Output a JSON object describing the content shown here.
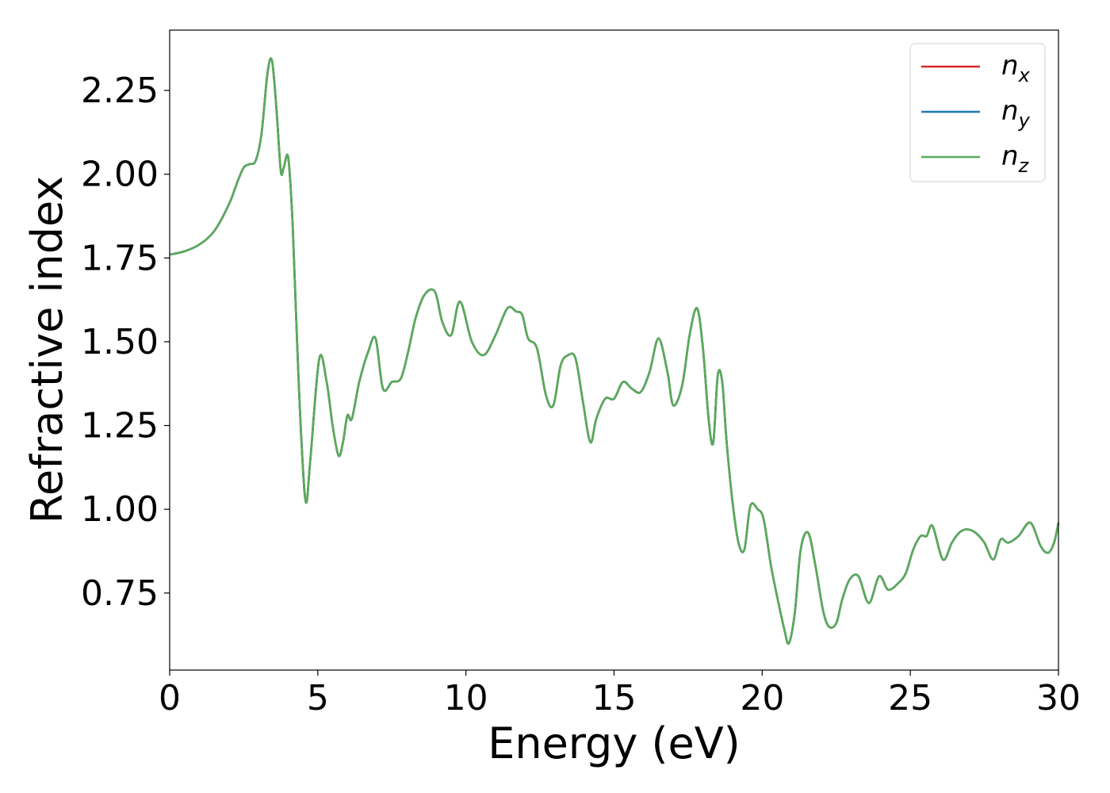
{
  "chart_data": {
    "type": "line",
    "title": "",
    "xlabel": "Energy (eV)",
    "ylabel": "Refractive index",
    "xlim": [
      0,
      30
    ],
    "ylim": [
      0.52,
      2.43
    ],
    "xticks": [
      0,
      5,
      10,
      15,
      20,
      25,
      30
    ],
    "xtick_labels": [
      "0",
      "5",
      "10",
      "15",
      "20",
      "25",
      "30"
    ],
    "yticks": [
      0.75,
      1.0,
      1.25,
      1.5,
      1.75,
      2.0,
      2.25
    ],
    "ytick_labels": [
      "0.75",
      "1.00",
      "1.25",
      "1.50",
      "1.75",
      "2.00",
      "2.25"
    ],
    "grid": false,
    "legend_position": "top-right",
    "series": [
      {
        "name": "n",
        "sub": "x",
        "color": "#d62728",
        "x": [
          0,
          0.5,
          1,
          1.5,
          2,
          2.3,
          2.5,
          2.7,
          2.9,
          3.1,
          3.3,
          3.45,
          3.6,
          3.75,
          3.85,
          4.0,
          4.15,
          4.3,
          4.45,
          4.6,
          4.75,
          5.05,
          5.3,
          5.5,
          5.7,
          5.85,
          6.0,
          6.15,
          6.4,
          6.7,
          6.95,
          7.2,
          7.5,
          7.8,
          8.05,
          8.3,
          8.6,
          8.95,
          9.2,
          9.5,
          9.8,
          10.2,
          10.6,
          11.0,
          11.4,
          11.7,
          11.9,
          12.1,
          12.4,
          12.7,
          12.95,
          13.2,
          13.45,
          13.7,
          13.95,
          14.2,
          14.4,
          14.7,
          15.0,
          15.3,
          15.6,
          15.9,
          16.2,
          16.5,
          16.8,
          17.0,
          17.3,
          17.55,
          17.8,
          18.0,
          18.2,
          18.35,
          18.5,
          18.65,
          18.8,
          19.0,
          19.2,
          19.4,
          19.6,
          19.85,
          20.05,
          20.3,
          20.55,
          20.75,
          20.9,
          21.1,
          21.3,
          21.55,
          21.8,
          22.05,
          22.25,
          22.5,
          22.7,
          22.95,
          23.25,
          23.6,
          23.95,
          24.25,
          24.6,
          24.85,
          25.1,
          25.35,
          25.55,
          25.75,
          26.1,
          26.4,
          26.65,
          26.9,
          27.2,
          27.5,
          27.8,
          28.05,
          28.3,
          28.65,
          29.05,
          29.4,
          29.65,
          29.85,
          30.0
        ],
        "y": [
          1.76,
          1.77,
          1.79,
          1.83,
          1.91,
          1.98,
          2.02,
          2.03,
          2.04,
          2.12,
          2.3,
          2.34,
          2.2,
          2.01,
          2.02,
          2.05,
          1.85,
          1.5,
          1.2,
          1.02,
          1.15,
          1.45,
          1.38,
          1.25,
          1.16,
          1.2,
          1.28,
          1.27,
          1.38,
          1.47,
          1.51,
          1.36,
          1.38,
          1.39,
          1.47,
          1.57,
          1.64,
          1.65,
          1.56,
          1.52,
          1.62,
          1.5,
          1.46,
          1.52,
          1.6,
          1.59,
          1.58,
          1.51,
          1.48,
          1.34,
          1.31,
          1.43,
          1.46,
          1.45,
          1.32,
          1.2,
          1.27,
          1.33,
          1.33,
          1.38,
          1.36,
          1.35,
          1.41,
          1.51,
          1.41,
          1.31,
          1.37,
          1.52,
          1.6,
          1.48,
          1.26,
          1.2,
          1.4,
          1.38,
          1.2,
          1.02,
          0.9,
          0.88,
          1.01,
          1.0,
          0.97,
          0.83,
          0.72,
          0.64,
          0.6,
          0.69,
          0.88,
          0.93,
          0.83,
          0.7,
          0.65,
          0.66,
          0.73,
          0.79,
          0.8,
          0.72,
          0.8,
          0.76,
          0.78,
          0.81,
          0.88,
          0.92,
          0.92,
          0.95,
          0.85,
          0.9,
          0.93,
          0.94,
          0.93,
          0.9,
          0.85,
          0.91,
          0.9,
          0.92,
          0.96,
          0.89,
          0.87,
          0.9,
          0.96
        ]
      },
      {
        "name": "n",
        "sub": "y",
        "color": "#1f77b4",
        "x": [
          0,
          0.5,
          1,
          1.5,
          2,
          2.3,
          2.5,
          2.7,
          2.9,
          3.1,
          3.3,
          3.45,
          3.6,
          3.75,
          3.85,
          4.0,
          4.15,
          4.3,
          4.45,
          4.6,
          4.75,
          5.05,
          5.3,
          5.5,
          5.7,
          5.85,
          6.0,
          6.15,
          6.4,
          6.7,
          6.95,
          7.2,
          7.5,
          7.8,
          8.05,
          8.3,
          8.6,
          8.95,
          9.2,
          9.5,
          9.8,
          10.2,
          10.6,
          11.0,
          11.4,
          11.7,
          11.9,
          12.1,
          12.4,
          12.7,
          12.95,
          13.2,
          13.45,
          13.7,
          13.95,
          14.2,
          14.4,
          14.7,
          15.0,
          15.3,
          15.6,
          15.9,
          16.2,
          16.5,
          16.8,
          17.0,
          17.3,
          17.55,
          17.8,
          18.0,
          18.2,
          18.35,
          18.5,
          18.65,
          18.8,
          19.0,
          19.2,
          19.4,
          19.6,
          19.85,
          20.05,
          20.3,
          20.55,
          20.75,
          20.9,
          21.1,
          21.3,
          21.55,
          21.8,
          22.05,
          22.25,
          22.5,
          22.7,
          22.95,
          23.25,
          23.6,
          23.95,
          24.25,
          24.6,
          24.85,
          25.1,
          25.35,
          25.55,
          25.75,
          26.1,
          26.4,
          26.65,
          26.9,
          27.2,
          27.5,
          27.8,
          28.05,
          28.3,
          28.65,
          29.05,
          29.4,
          29.65,
          29.85,
          30.0
        ],
        "y": [
          1.76,
          1.77,
          1.79,
          1.83,
          1.91,
          1.98,
          2.02,
          2.03,
          2.04,
          2.12,
          2.3,
          2.34,
          2.2,
          2.01,
          2.02,
          2.05,
          1.85,
          1.5,
          1.2,
          1.02,
          1.15,
          1.45,
          1.38,
          1.25,
          1.16,
          1.2,
          1.28,
          1.27,
          1.38,
          1.47,
          1.51,
          1.36,
          1.38,
          1.39,
          1.47,
          1.57,
          1.64,
          1.65,
          1.56,
          1.52,
          1.62,
          1.5,
          1.46,
          1.52,
          1.6,
          1.59,
          1.58,
          1.51,
          1.48,
          1.34,
          1.31,
          1.43,
          1.46,
          1.45,
          1.32,
          1.2,
          1.27,
          1.33,
          1.33,
          1.38,
          1.36,
          1.35,
          1.41,
          1.51,
          1.41,
          1.31,
          1.37,
          1.52,
          1.6,
          1.48,
          1.26,
          1.2,
          1.4,
          1.38,
          1.2,
          1.02,
          0.9,
          0.88,
          1.01,
          1.0,
          0.97,
          0.83,
          0.72,
          0.64,
          0.6,
          0.69,
          0.88,
          0.93,
          0.83,
          0.7,
          0.65,
          0.66,
          0.73,
          0.79,
          0.8,
          0.72,
          0.8,
          0.76,
          0.78,
          0.81,
          0.88,
          0.92,
          0.92,
          0.95,
          0.85,
          0.9,
          0.93,
          0.94,
          0.93,
          0.9,
          0.85,
          0.91,
          0.9,
          0.92,
          0.96,
          0.89,
          0.87,
          0.9,
          0.96
        ]
      },
      {
        "name": "n",
        "sub": "z",
        "color": "#5aab5a",
        "x": [
          0,
          0.5,
          1,
          1.5,
          2,
          2.3,
          2.5,
          2.7,
          2.9,
          3.1,
          3.3,
          3.45,
          3.6,
          3.75,
          3.85,
          4.0,
          4.15,
          4.3,
          4.45,
          4.6,
          4.75,
          5.05,
          5.3,
          5.5,
          5.7,
          5.85,
          6.0,
          6.15,
          6.4,
          6.7,
          6.95,
          7.2,
          7.5,
          7.8,
          8.05,
          8.3,
          8.6,
          8.95,
          9.2,
          9.5,
          9.8,
          10.2,
          10.6,
          11.0,
          11.4,
          11.7,
          11.9,
          12.1,
          12.4,
          12.7,
          12.95,
          13.2,
          13.45,
          13.7,
          13.95,
          14.2,
          14.4,
          14.7,
          15.0,
          15.3,
          15.6,
          15.9,
          16.2,
          16.5,
          16.8,
          17.0,
          17.3,
          17.55,
          17.8,
          18.0,
          18.2,
          18.35,
          18.5,
          18.65,
          18.8,
          19.0,
          19.2,
          19.4,
          19.6,
          19.85,
          20.05,
          20.3,
          20.55,
          20.75,
          20.9,
          21.1,
          21.3,
          21.55,
          21.8,
          22.05,
          22.25,
          22.5,
          22.7,
          22.95,
          23.25,
          23.6,
          23.95,
          24.25,
          24.6,
          24.85,
          25.1,
          25.35,
          25.55,
          25.75,
          26.1,
          26.4,
          26.65,
          26.9,
          27.2,
          27.5,
          27.8,
          28.05,
          28.3,
          28.65,
          29.05,
          29.4,
          29.65,
          29.85,
          30.0
        ],
        "y": [
          1.76,
          1.77,
          1.79,
          1.83,
          1.91,
          1.98,
          2.02,
          2.03,
          2.04,
          2.12,
          2.3,
          2.34,
          2.2,
          2.01,
          2.02,
          2.05,
          1.85,
          1.5,
          1.2,
          1.02,
          1.15,
          1.45,
          1.38,
          1.25,
          1.16,
          1.2,
          1.28,
          1.27,
          1.38,
          1.47,
          1.51,
          1.36,
          1.38,
          1.39,
          1.47,
          1.57,
          1.64,
          1.65,
          1.56,
          1.52,
          1.62,
          1.5,
          1.46,
          1.52,
          1.6,
          1.59,
          1.58,
          1.51,
          1.48,
          1.34,
          1.31,
          1.43,
          1.46,
          1.45,
          1.32,
          1.2,
          1.27,
          1.33,
          1.33,
          1.38,
          1.36,
          1.35,
          1.41,
          1.51,
          1.41,
          1.31,
          1.37,
          1.52,
          1.6,
          1.48,
          1.26,
          1.2,
          1.4,
          1.38,
          1.2,
          1.02,
          0.9,
          0.88,
          1.01,
          1.0,
          0.97,
          0.83,
          0.72,
          0.64,
          0.6,
          0.69,
          0.88,
          0.93,
          0.83,
          0.7,
          0.65,
          0.66,
          0.73,
          0.79,
          0.8,
          0.72,
          0.8,
          0.76,
          0.78,
          0.81,
          0.88,
          0.92,
          0.92,
          0.95,
          0.85,
          0.9,
          0.93,
          0.94,
          0.93,
          0.9,
          0.85,
          0.91,
          0.9,
          0.92,
          0.96,
          0.89,
          0.87,
          0.9,
          0.96
        ]
      }
    ]
  }
}
